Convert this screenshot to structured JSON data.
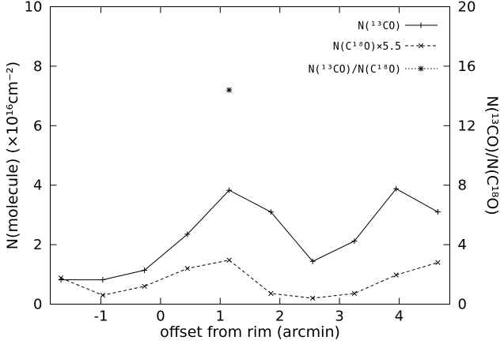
{
  "chart_data": {
    "type": "line",
    "x_axis": {
      "label": "offset from rim (arcmin)",
      "range": [
        -1.85,
        4.85
      ],
      "ticks": [
        -1,
        0,
        1,
        2,
        3,
        4
      ]
    },
    "y_left": {
      "label": "N(molecule) (×10¹⁶cm⁻²)",
      "range": [
        0,
        10
      ],
      "ticks": [
        0,
        2,
        4,
        6,
        8,
        10
      ]
    },
    "y_right": {
      "label": "N(¹³CO)/N(C¹⁸O)",
      "range": [
        0,
        20
      ],
      "ticks": [
        0,
        4,
        8,
        12,
        16,
        20
      ]
    },
    "legend_position": "top-right",
    "series": [
      {
        "name": "N(¹³CO)",
        "axis": "left",
        "line_style": "solid",
        "marker": "plus",
        "x": [
          -1.67,
          -0.97,
          -0.27,
          0.45,
          1.15,
          1.85,
          2.55,
          3.25,
          3.95,
          4.65
        ],
        "y": [
          0.82,
          0.82,
          1.14,
          2.35,
          3.83,
          3.1,
          1.44,
          2.12,
          3.88,
          3.1
        ]
      },
      {
        "name": "N(C¹⁸O)×5.5",
        "axis": "left",
        "line_style": "dashed",
        "marker": "cross",
        "x": [
          -1.67,
          -0.97,
          -0.27,
          0.45,
          1.15,
          1.85,
          2.55,
          3.25,
          3.95,
          4.65
        ],
        "y": [
          0.88,
          0.3,
          0.6,
          1.2,
          1.48,
          0.36,
          0.2,
          0.36,
          0.98,
          1.4
        ]
      },
      {
        "name": "N(¹³CO)/N(C¹⁸O)",
        "axis": "right",
        "line_style": "dotted",
        "marker": "star",
        "x": [
          1.15
        ],
        "y": [
          14.4
        ]
      }
    ]
  }
}
